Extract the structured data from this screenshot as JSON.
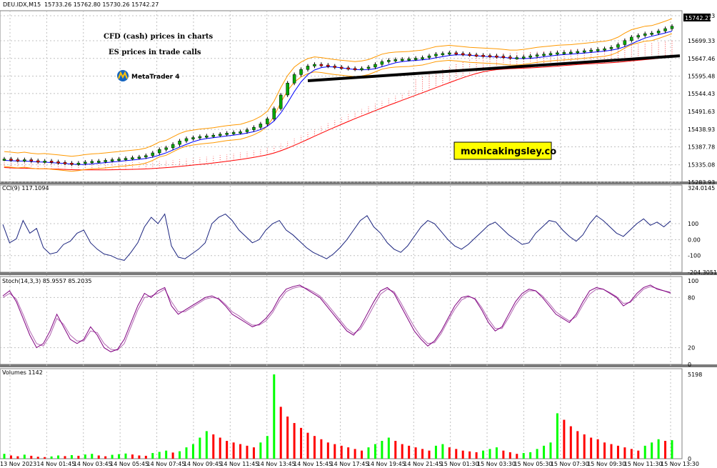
{
  "chart_data": [
    {
      "type": "candlestick",
      "title": "DEU.IDX,M15",
      "ohlc_text": "15733.26 15762.80 15730.26 15742.27",
      "current_price": "15742.27",
      "ylim": [
        15283.93,
        15775.0
      ],
      "y_ticks": [
        "15772.93",
        "15699.33",
        "15647.46",
        "15595.48",
        "15544.43",
        "15491.63",
        "15438.93",
        "15387.78",
        "15335.08",
        "15283.93"
      ],
      "close_series": [
        15352,
        15350,
        15348,
        15350,
        15347,
        15345,
        15346,
        15344,
        15342,
        15340,
        15338,
        15340,
        15343,
        15345,
        15346,
        15348,
        15350,
        15352,
        15354,
        15356,
        15358,
        15362,
        15370,
        15380,
        15385,
        15395,
        15405,
        15412,
        15415,
        15418,
        15420,
        15422,
        15425,
        15428,
        15430,
        15432,
        15438,
        15445,
        15455,
        15470,
        15500,
        15540,
        15575,
        15600,
        15615,
        15625,
        15630,
        15628,
        15625,
        15622,
        15620,
        15618,
        15616,
        15618,
        15622,
        15630,
        15638,
        15642,
        15644,
        15645,
        15646,
        15648,
        15650,
        15655,
        15660,
        15662,
        15664,
        15662,
        15660,
        15658,
        15657,
        15656,
        15655,
        15654,
        15652,
        15650,
        15650,
        15652,
        15655,
        15658,
        15660,
        15662,
        15664,
        15665,
        15666,
        15668,
        15670,
        15672,
        15674,
        15676,
        15680,
        15688,
        15700,
        15710,
        15715,
        15720,
        15722,
        15728,
        15735,
        15742
      ],
      "annotations": [
        "CFD (cash) prices in charts",
        "ES prices in trade calls"
      ],
      "brand_logo": "MetaTrader 4",
      "watermark": "monicakingsley.co"
    },
    {
      "type": "line",
      "title": "CCI(9) 117.1094",
      "ylim": [
        -204.3051,
        324.0145
      ],
      "y_ticks": [
        "324.0145",
        "100",
        "0.00",
        "-100",
        "-204.3051"
      ],
      "values": [
        95,
        -20,
        5,
        120,
        40,
        70,
        -50,
        -90,
        -80,
        -30,
        -10,
        40,
        60,
        -20,
        -60,
        -90,
        -100,
        -120,
        -130,
        -80,
        -20,
        80,
        140,
        100,
        160,
        -40,
        -110,
        -120,
        -90,
        -60,
        -20,
        100,
        140,
        160,
        120,
        60,
        20,
        -20,
        0,
        60,
        100,
        120,
        60,
        30,
        -10,
        -50,
        -80,
        -100,
        -120,
        -90,
        -50,
        0,
        60,
        120,
        150,
        80,
        40,
        -20,
        -60,
        -80,
        -40,
        20,
        80,
        120,
        100,
        50,
        0,
        -40,
        -60,
        -30,
        10,
        50,
        90,
        110,
        70,
        30,
        0,
        -30,
        -20,
        40,
        80,
        120,
        110,
        60,
        20,
        -10,
        30,
        100,
        150,
        120,
        80,
        40,
        20,
        60,
        100,
        130,
        90,
        110,
        80,
        117
      ]
    },
    {
      "type": "line",
      "title": "Stoch(14,3,3) 85.9557 85.2035",
      "ylim": [
        0,
        100
      ],
      "y_ticks": [
        "100",
        "80",
        "20",
        "0"
      ],
      "series": [
        {
          "values": [
            82,
            88,
            75,
            55,
            35,
            20,
            25,
            40,
            60,
            45,
            30,
            25,
            30,
            45,
            35,
            20,
            15,
            18,
            30,
            50,
            70,
            85,
            80,
            88,
            92,
            70,
            60,
            65,
            70,
            75,
            80,
            82,
            78,
            70,
            60,
            55,
            50,
            45,
            48,
            55,
            65,
            80,
            90,
            93,
            95,
            90,
            85,
            80,
            70,
            60,
            50,
            40,
            35,
            45,
            60,
            75,
            88,
            92,
            85,
            70,
            55,
            40,
            30,
            22,
            28,
            40,
            55,
            70,
            80,
            82,
            78,
            65,
            50,
            40,
            45,
            60,
            75,
            85,
            90,
            88,
            80,
            70,
            60,
            55,
            50,
            60,
            75,
            88,
            92,
            90,
            85,
            80,
            70,
            75,
            85,
            92,
            95,
            90,
            88,
            86
          ]
        },
        {
          "values": [
            80,
            85,
            78,
            60,
            40,
            25,
            22,
            35,
            55,
            48,
            35,
            28,
            28,
            40,
            38,
            25,
            18,
            17,
            25,
            45,
            65,
            80,
            82,
            85,
            90,
            75,
            63,
            63,
            68,
            73,
            78,
            80,
            79,
            72,
            63,
            58,
            52,
            47,
            47,
            52,
            62,
            76,
            87,
            91,
            93,
            91,
            87,
            82,
            73,
            63,
            53,
            43,
            37,
            42,
            55,
            70,
            84,
            90,
            87,
            74,
            59,
            45,
            33,
            25,
            26,
            37,
            52,
            66,
            77,
            81,
            79,
            68,
            54,
            43,
            43,
            56,
            71,
            82,
            88,
            88,
            82,
            73,
            63,
            57,
            52,
            57,
            71,
            84,
            90,
            90,
            86,
            81,
            73,
            74,
            82,
            90,
            93,
            91,
            88,
            85
          ]
        }
      ]
    },
    {
      "type": "bar",
      "title": "Volumes 1142",
      "ylim": [
        0,
        5198
      ],
      "y_ticks": [
        "5198",
        "0"
      ],
      "values": [
        300,
        200,
        150,
        250,
        180,
        120,
        100,
        140,
        200,
        160,
        220,
        180,
        260,
        300,
        200,
        150,
        240,
        280,
        320,
        260,
        200,
        180,
        350,
        420,
        500,
        380,
        460,
        700,
        900,
        1300,
        1700,
        1500,
        1300,
        1100,
        1000,
        900,
        800,
        700,
        1000,
        1400,
        5198,
        3200,
        2600,
        2200,
        1900,
        1600,
        1400,
        1200,
        1000,
        900,
        800,
        700,
        600,
        500,
        700,
        900,
        1100,
        1300,
        1100,
        900,
        800,
        700,
        600,
        500,
        800,
        900,
        700,
        600,
        500,
        450,
        400,
        500,
        600,
        700,
        500,
        400,
        300,
        350,
        400,
        600,
        800,
        1000,
        2800,
        2400,
        2000,
        1700,
        1500,
        1300,
        1200,
        1000,
        900,
        800,
        700,
        600,
        500,
        800,
        1000,
        1200,
        1100,
        1142
      ],
      "bar_colors": [
        "#00ff00",
        "#ff0000"
      ]
    }
  ],
  "time_axis": [
    "13 Nov 2023",
    "14 Nov 01:45",
    "14 Nov 03:45",
    "14 Nov 05:45",
    "14 Nov 07:45",
    "14 Nov 09:45",
    "14 Nov 11:45",
    "14 Nov 13:45",
    "14 Nov 15:45",
    "14 Nov 17:45",
    "14 Nov 19:45",
    "14 Nov 21:45",
    "15 Nov 01:30",
    "15 Nov 03:30",
    "15 Nov 05:30",
    "15 Nov 07:30",
    "15 Nov 09:30",
    "15 Nov 11:30",
    "15 Nov 13:30"
  ],
  "colors": {
    "grid": "#c0c0c0",
    "frame": "#808080",
    "panel_sep": "#808080",
    "bull_candle": "#00aa00",
    "bear_candle": "#ff0000",
    "ma_fast": "#0000ff",
    "ma_slow": "#ff0000",
    "bands": "#ff9900",
    "trend": "#000000",
    "cci": "#1a237e",
    "stoch": "#800080",
    "vol_up": "#00ff00",
    "vol_down": "#ff0000",
    "watermark_bg": "#ffff00"
  }
}
